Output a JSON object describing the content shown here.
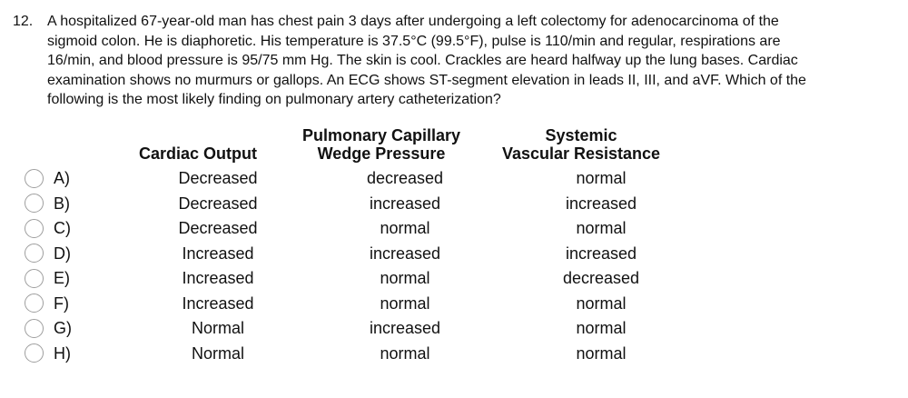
{
  "question": {
    "number": "12.",
    "lines": [
      "A hospitalized 67-year-old man has chest pain 3 days after undergoing a left colectomy for adenocarcinoma of the",
      "sigmoid colon. He is diaphoretic. His temperature is 37.5°C (99.5°F), pulse is 110/min and regular, respirations are",
      "16/min, and blood pressure is 95/75 mm Hg. The skin is cool. Crackles are heard halfway up the lung bases. Cardiac",
      "examination shows no murmurs or gallops. An ECG shows ST-segment elevation in leads II, III, and aVF. Which of the",
      "following is the most likely finding on pulmonary artery catheterization?"
    ]
  },
  "table": {
    "headers": {
      "cardiac_output": "Cardiac Output",
      "wedge_line1": "Pulmonary Capillary",
      "wedge_line2": "Wedge Pressure",
      "svr_line1": "Systemic",
      "svr_line2": "Vascular Resistance"
    }
  },
  "options": [
    {
      "letter": "A)",
      "cardiac_output": "Decreased",
      "wedge_pressure": "decreased",
      "svr": "normal"
    },
    {
      "letter": "B)",
      "cardiac_output": "Decreased",
      "wedge_pressure": "increased",
      "svr": "increased"
    },
    {
      "letter": "C)",
      "cardiac_output": "Decreased",
      "wedge_pressure": "normal",
      "svr": "normal"
    },
    {
      "letter": "D)",
      "cardiac_output": "Increased",
      "wedge_pressure": "increased",
      "svr": "increased"
    },
    {
      "letter": "E)",
      "cardiac_output": "Increased",
      "wedge_pressure": "normal",
      "svr": "decreased"
    },
    {
      "letter": "F)",
      "cardiac_output": "Increased",
      "wedge_pressure": "normal",
      "svr": "normal"
    },
    {
      "letter": "G)",
      "cardiac_output": "Normal",
      "wedge_pressure": "increased",
      "svr": "normal"
    },
    {
      "letter": "H)",
      "cardiac_output": "Normal",
      "wedge_pressure": "normal",
      "svr": "normal"
    }
  ],
  "colors": {
    "background": "#ffffff",
    "text": "#111111",
    "radio_border": "#9e9e9e"
  }
}
